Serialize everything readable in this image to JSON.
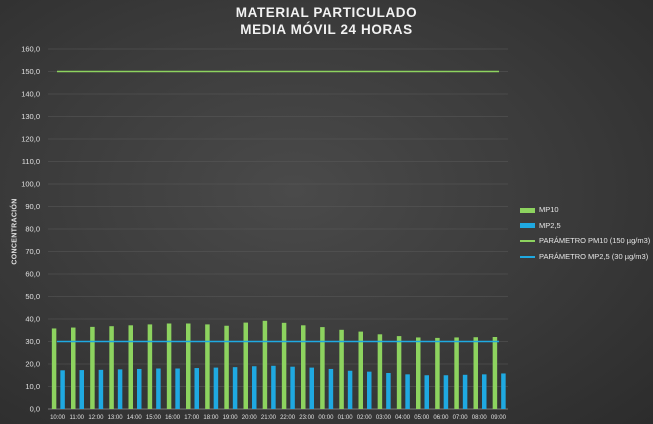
{
  "chart_data": {
    "type": "bar",
    "title": "MATERIAL PARTICULADO",
    "subtitle": "MEDIA MÓVIL 24 HORAS",
    "ylabel": "CONCENTRACIÓN",
    "xlabel": "",
    "ylim": [
      0,
      160
    ],
    "ytick_step": 10,
    "yticks": [
      "0,0",
      "10,0",
      "20,0",
      "30,0",
      "40,0",
      "50,0",
      "60,0",
      "70,0",
      "80,0",
      "90,0",
      "100,0",
      "110,0",
      "120,0",
      "130,0",
      "140,0",
      "150,0",
      "160,0"
    ],
    "grid": true,
    "legend_position": "right",
    "categories": [
      "10:00",
      "11:00",
      "12:00",
      "13:00",
      "14:00",
      "15:00",
      "16:00",
      "17:00",
      "18:00",
      "19:00",
      "20:00",
      "21:00",
      "22:00",
      "23:00",
      "00:00",
      "01:00",
      "02:00",
      "03:00",
      "04:00",
      "05:00",
      "06:00",
      "07:00",
      "08:00",
      "09:00"
    ],
    "series": [
      {
        "name": "MP10",
        "kind": "bar",
        "color": "#8dd35f",
        "values": [
          35.8,
          36.2,
          36.5,
          36.8,
          37.2,
          37.6,
          38.0,
          38.0,
          37.6,
          37.0,
          38.4,
          39.2,
          38.3,
          37.2,
          36.4,
          35.2,
          34.4,
          33.2,
          32.4,
          31.8,
          31.6,
          31.8,
          31.9,
          32.0
        ]
      },
      {
        "name": "MP2,5",
        "kind": "bar",
        "color": "#1fa9e1",
        "values": [
          17.2,
          17.3,
          17.4,
          17.6,
          17.8,
          18.0,
          18.0,
          18.2,
          18.4,
          18.6,
          19.0,
          19.2,
          18.8,
          18.4,
          17.8,
          17.0,
          16.6,
          16.0,
          15.4,
          15.0,
          15.0,
          15.2,
          15.4,
          15.8
        ]
      },
      {
        "name": "PARÁMETRO PM10 (150 µg/m3)",
        "kind": "line",
        "color": "#8dd35f",
        "value": 150
      },
      {
        "name": "PARÁMETRO MP2,5 (30 µg/m3)",
        "kind": "line",
        "color": "#1fa9e1",
        "value": 30
      }
    ]
  }
}
